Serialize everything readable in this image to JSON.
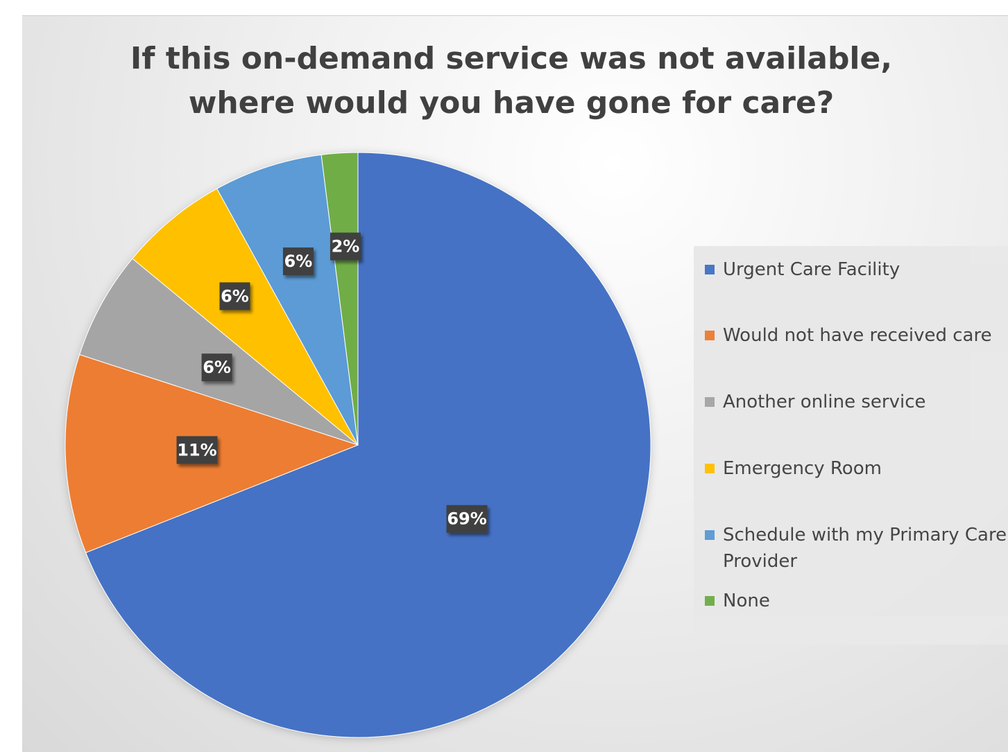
{
  "chart_data": {
    "type": "pie",
    "title_lines": [
      "If this on-demand service was not available,",
      "where would you have gone for care?"
    ],
    "slices": [
      {
        "label": "Urgent Care Facility",
        "value": 69,
        "display": "69%",
        "color": "#4472C4"
      },
      {
        "label": "Would not have received care",
        "value": 11,
        "display": "11%",
        "color": "#ED7D31"
      },
      {
        "label": "Another online service",
        "value": 6,
        "display": "6%",
        "color": "#A5A5A5"
      },
      {
        "label": "Emergency Room",
        "value": 6,
        "display": "6%",
        "color": "#FFC000"
      },
      {
        "label": "Schedule with my Primary Care Provider",
        "value": 6,
        "display": "6%",
        "color": "#5B9BD5"
      },
      {
        "label": "None",
        "value": 2,
        "display": "2%",
        "color": "#70AD47"
      }
    ],
    "legend_position": "right",
    "data_label_style": "dark-boxed"
  }
}
